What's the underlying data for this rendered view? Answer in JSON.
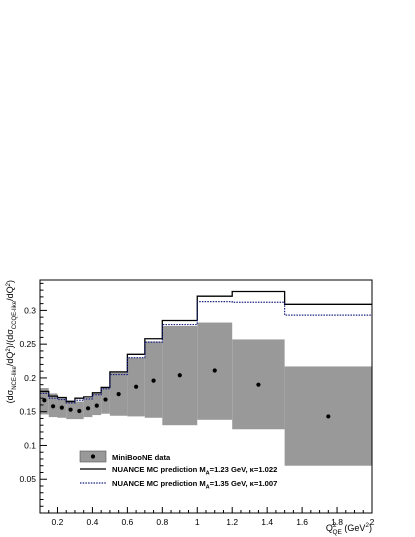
{
  "chart_data": {
    "type": "line",
    "title": "",
    "xlabel": "Q²_QE (GeV²)",
    "xlabel_parts": {
      "main": "Q",
      "sup": "2",
      "sub": "QE",
      "unit": "(GeV",
      "unit_sup": "2",
      "unit_close": ")"
    },
    "ylabel": "(dσ_NCE-like/dQ²)/(dσ_CCQE-like/dQ²)",
    "xlim": [
      0.1,
      2.0
    ],
    "ylim": [
      0.0,
      0.345
    ],
    "x_ticks": [
      0.2,
      0.4,
      0.6,
      0.8,
      1,
      1.2,
      1.4,
      1.6,
      1.8,
      2
    ],
    "x_tick_labels": [
      "0.2",
      "0.4",
      "0.6",
      "0.8",
      "1",
      "1.2",
      "1.4",
      "1.6",
      "1.8",
      "2"
    ],
    "y_ticks": [
      0.05,
      0.1,
      0.15,
      0.2,
      0.25,
      0.3
    ],
    "y_tick_labels": [
      "0.05",
      "0.1",
      "0.15",
      "0.2",
      "0.25",
      "0.3"
    ],
    "bin_edges": [
      0.1,
      0.15,
      0.2,
      0.25,
      0.3,
      0.35,
      0.4,
      0.45,
      0.5,
      0.6,
      0.7,
      0.8,
      1.0,
      1.2,
      1.5,
      2.0
    ],
    "series": [
      {
        "name": "MiniBooNE data",
        "kind": "data-with-error-band",
        "x": [
          0.125,
          0.175,
          0.225,
          0.275,
          0.325,
          0.375,
          0.425,
          0.475,
          0.55,
          0.65,
          0.75,
          0.9,
          1.1,
          1.35,
          1.75
        ],
        "y": [
          0.167,
          0.158,
          0.156,
          0.153,
          0.151,
          0.155,
          0.159,
          0.168,
          0.176,
          0.187,
          0.196,
          0.204,
          0.211,
          0.19,
          0.143
        ],
        "band_low": [
          0.146,
          0.142,
          0.141,
          0.139,
          0.139,
          0.142,
          0.145,
          0.147,
          0.144,
          0.143,
          0.141,
          0.13,
          0.138,
          0.124,
          0.07
        ],
        "band_high": [
          0.185,
          0.177,
          0.171,
          0.167,
          0.165,
          0.17,
          0.178,
          0.186,
          0.208,
          0.23,
          0.254,
          0.277,
          0.282,
          0.257,
          0.217
        ],
        "color": "#999999"
      },
      {
        "name": "NUANCE MC prediction M_A=1.23 GeV, κ=1.022",
        "kind": "histogram",
        "values": [
          0.18,
          0.173,
          0.171,
          0.165,
          0.17,
          0.172,
          0.178,
          0.186,
          0.209,
          0.235,
          0.258,
          0.285,
          0.321,
          0.328,
          0.309
        ],
        "color": "#000000",
        "dash": false
      },
      {
        "name": "NUANCE MC prediction M_A=1.35 GeV, κ=1.007",
        "kind": "histogram",
        "values": [
          0.177,
          0.17,
          0.168,
          0.163,
          0.167,
          0.169,
          0.175,
          0.184,
          0.205,
          0.23,
          0.253,
          0.279,
          0.313,
          0.312,
          0.293
        ],
        "color": "#1a237e",
        "dash": true
      }
    ],
    "legend": {
      "position": "bottom-left",
      "entries": [
        {
          "label": "MiniBooNE data",
          "label_html": "MiniBooNE data"
        },
        {
          "label": "NUANCE MC prediction M_A=1.23 GeV, κ=1.022",
          "prefix": "NUANCE MC prediction M",
          "sub": "A",
          "suffix": "=1.23 GeV, κ=1.022"
        },
        {
          "label": "NUANCE MC prediction M_A=1.35 GeV, κ=1.007",
          "prefix": "NUANCE MC prediction M",
          "sub": "A",
          "suffix": "=1.35 GeV, κ=1.007"
        }
      ]
    },
    "grid": false,
    "colors": {
      "band": "#999999",
      "mc1": "#000000",
      "mc2": "#1a237e",
      "points": "#000000"
    }
  }
}
